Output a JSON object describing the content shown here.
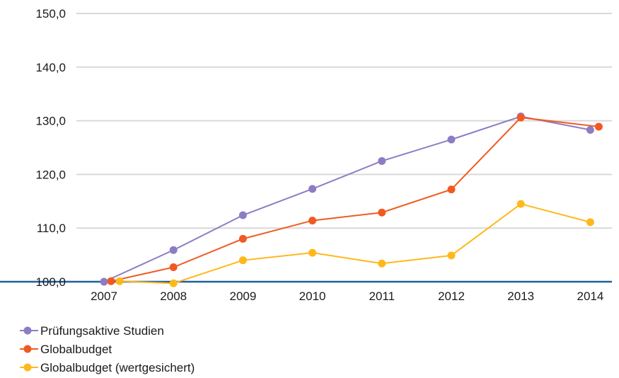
{
  "chart_data": {
    "type": "line",
    "categories": [
      "2007",
      "2008",
      "2009",
      "2010",
      "2011",
      "2012",
      "2013",
      "2014"
    ],
    "y_tick_labels": [
      "100,0",
      "110,0",
      "120,0",
      "130,0",
      "140,0",
      "150,0"
    ],
    "ylim": [
      100,
      150
    ],
    "grid": true,
    "legend_position": "bottom-left",
    "baseline_color": "#1f5f9e",
    "series": [
      {
        "name": "Prüfungsaktive Studien",
        "color": "#8e7cc3",
        "values": [
          100.0,
          105.9,
          112.4,
          117.3,
          122.5,
          126.5,
          130.8,
          128.3
        ]
      },
      {
        "name": "Globalbudget",
        "color": "#f05a22",
        "values": [
          100.1,
          102.7,
          108.0,
          111.4,
          112.9,
          117.2,
          130.6,
          128.9
        ]
      },
      {
        "name": "Globalbudget (wertgesichert)",
        "color": "#ffb81c",
        "values": [
          100.1,
          99.7,
          104.0,
          105.4,
          103.4,
          104.9,
          114.5,
          111.1
        ]
      }
    ]
  }
}
